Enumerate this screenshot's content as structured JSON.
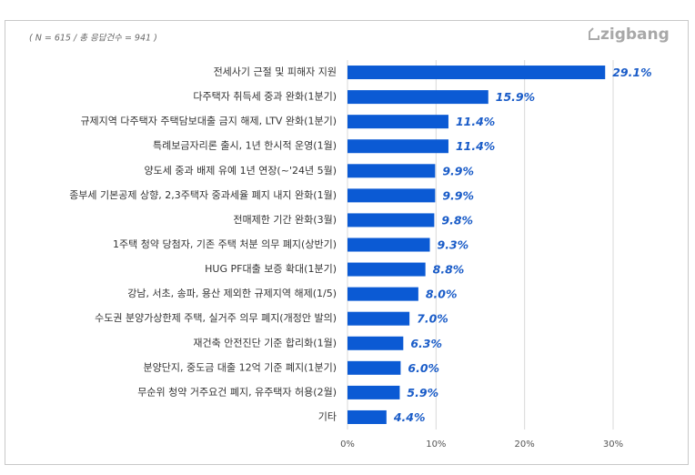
{
  "chart_data": {
    "type": "bar",
    "orientation": "horizontal",
    "subtitle": "( N = 615 / 총 응답건수 = 941 )",
    "brand": "zigbang",
    "categories": [
      "전세사기 근절 및 피해자 지원",
      "다주택자 취득세 중과 완화(1분기)",
      "규제지역 다주택자 주택담보대출 금지 해제, LTV 완화(1분기)",
      "특례보금자리론 출시, 1년 한시적 운영(1월)",
      "양도세 중과 배제 유예 1년 연장(~'24년 5월)",
      "종부세 기본공제 상향, 2,3주택자 중과세율 폐지 내지 완화(1월)",
      "전매제한 기간 완화(3월)",
      "1주택 청약 당첨자, 기존 주택 처분 의무 폐지(상반기)",
      "HUG PF대출 보증 확대(1분기)",
      "강남, 서초, 송파, 용산 제외한 규제지역 해제(1/5)",
      "수도권 분양가상한제 주택, 실거주 의무 폐지(개정안 발의)",
      "재건축 안전진단 기준 합리화(1월)",
      "분양단지, 중도금 대출 12억 기준 폐지(1분기)",
      "무순위 청약 거주요건 폐지, 유주택자 허용(2월)",
      "기타"
    ],
    "values": [
      29.1,
      15.9,
      11.4,
      11.4,
      9.9,
      9.9,
      9.8,
      9.3,
      8.8,
      8.0,
      7.0,
      6.3,
      6.0,
      5.9,
      4.4
    ],
    "value_labels": [
      "29.1%",
      "15.9%",
      "11.4%",
      "11.4%",
      "9.9%",
      "9.9%",
      "9.8%",
      "9.3%",
      "8.8%",
      "8.0%",
      "7.0%",
      "6.3%",
      "6.0%",
      "5.9%",
      "4.4%"
    ],
    "color": "#0b5ad4",
    "xlim": [
      0,
      30
    ],
    "xticks": [
      {
        "value": 0,
        "label": "0%"
      },
      {
        "value": 10,
        "label": "10%"
      },
      {
        "value": 20,
        "label": "20%"
      },
      {
        "value": 30,
        "label": "30%"
      }
    ],
    "grid": true
  }
}
